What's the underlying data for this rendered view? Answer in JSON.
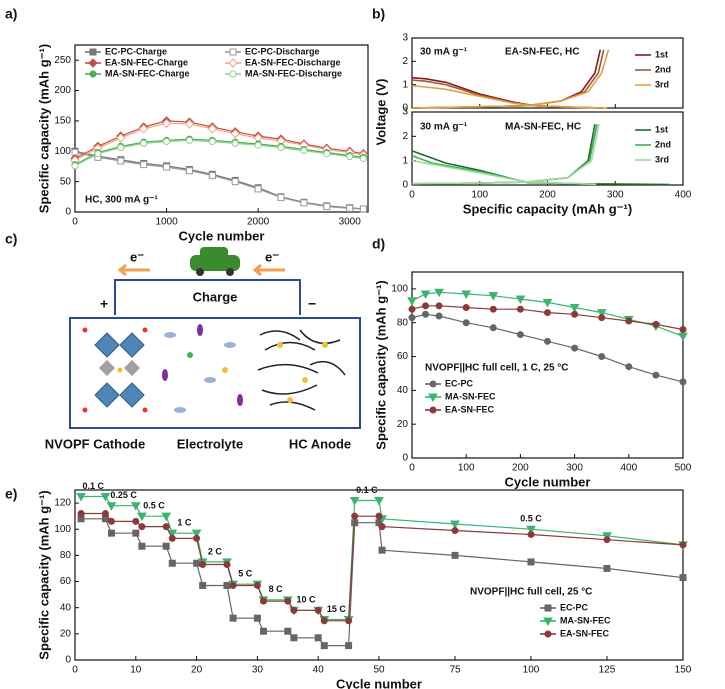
{
  "chart_data": [
    {
      "type": "line",
      "panel_label": "a)",
      "xlabel": "Cycle number",
      "ylabel": "Specific capacity (mAh g⁻¹)",
      "annotations": [
        "HC, 300 mA g⁻¹"
      ],
      "legend": "upper",
      "x": [
        0,
        250,
        500,
        750,
        1000,
        1250,
        1500,
        1750,
        2000,
        2250,
        2500,
        2750,
        3000,
        3150
      ],
      "xlim": [
        0,
        3200
      ],
      "xticks": [
        0,
        1000,
        2000,
        3000
      ],
      "ylim": [
        0,
        275
      ],
      "yticks": [
        0,
        50,
        100,
        150,
        200,
        250
      ],
      "series": [
        {
          "name": "EC-PC-Charge",
          "color": "#777777",
          "marker": "square",
          "hollow": false,
          "values": [
            100,
            92,
            86,
            80,
            76,
            70,
            62,
            52,
            40,
            25,
            16,
            10,
            7,
            5
          ]
        },
        {
          "name": "EC-PC-Discharge",
          "color": "#999999",
          "marker": "square",
          "hollow": true,
          "values": [
            98,
            90,
            84,
            78,
            74,
            68,
            60,
            50,
            38,
            24,
            15,
            9,
            6,
            5
          ]
        },
        {
          "name": "EA-SN-FEC-Charge",
          "color": "#c0504d",
          "marker": "diamond",
          "hollow": false,
          "values": [
            88,
            108,
            125,
            140,
            150,
            148,
            140,
            132,
            125,
            120,
            112,
            105,
            100,
            96
          ]
        },
        {
          "name": "EA-SN-FEC-Discharge",
          "color": "#f4a582",
          "marker": "diamond",
          "hollow": true,
          "values": [
            85,
            105,
            122,
            137,
            146,
            145,
            137,
            129,
            122,
            117,
            110,
            103,
            98,
            94
          ]
        },
        {
          "name": "MA-SN-FEC-Charge",
          "color": "#4caf50",
          "marker": "circle",
          "hollow": false,
          "values": [
            78,
            98,
            108,
            115,
            118,
            120,
            118,
            115,
            112,
            108,
            103,
            98,
            93,
            90
          ]
        },
        {
          "name": "MA-SN-FEC-Discharge",
          "color": "#8fd18f",
          "marker": "circle",
          "hollow": true,
          "values": [
            76,
            96,
            106,
            113,
            116,
            118,
            116,
            113,
            110,
            106,
            101,
            96,
            91,
            88
          ]
        }
      ]
    },
    {
      "type": "line",
      "panel_label": "b)",
      "annotations": [
        "30 mA g⁻¹",
        "EA-SN-FEC, HC"
      ],
      "legend": "right",
      "show_xtick_labels": false,
      "xlim": [
        0,
        400
      ],
      "xticks": [
        0,
        100,
        200,
        300,
        400
      ],
      "ylim": [
        0,
        3
      ],
      "yticks": [
        0,
        1,
        2,
        3
      ],
      "series": [
        {
          "name": "1st",
          "color": "#8b1a1a",
          "x": [
            0,
            20,
            50,
            100,
            150,
            180,
            230,
            280,
            null,
            0,
            100,
            170,
            220,
            250,
            270,
            278
          ],
          "values": [
            1.3,
            1.25,
            1.1,
            0.6,
            0.25,
            0.1,
            0.04,
            0,
            null,
            0,
            0.05,
            0.1,
            0.3,
            0.7,
            1.5,
            2.5
          ]
        },
        {
          "name": "2nd",
          "color": "#9c5a3c",
          "x": [
            0,
            20,
            50,
            100,
            150,
            180,
            230,
            283,
            null,
            0,
            100,
            170,
            220,
            255,
            275,
            283
          ],
          "values": [
            1.2,
            1.15,
            1.0,
            0.55,
            0.22,
            0.1,
            0.04,
            0,
            null,
            0,
            0.05,
            0.1,
            0.3,
            0.7,
            1.5,
            2.5
          ]
        },
        {
          "name": "3rd",
          "color": "#e0a040",
          "x": [
            0,
            20,
            50,
            100,
            150,
            180,
            230,
            288,
            null,
            0,
            100,
            170,
            220,
            260,
            280,
            290
          ],
          "values": [
            0.95,
            0.9,
            0.8,
            0.5,
            0.2,
            0.1,
            0.04,
            0,
            null,
            0,
            0.05,
            0.1,
            0.3,
            0.7,
            1.5,
            2.5
          ]
        }
      ]
    },
    {
      "type": "line",
      "xlabel": "Specific capacity (mAh g⁻¹)",
      "ylabel": "Voltage (V)",
      "annotations": [
        "30 mA g⁻¹",
        "MA-SN-FEC, HC"
      ],
      "legend": "right",
      "xlim": [
        0,
        400
      ],
      "xticks": [
        0,
        100,
        200,
        300,
        400
      ],
      "ylim": [
        0,
        3
      ],
      "yticks": [
        0,
        1,
        2,
        3
      ],
      "series": [
        {
          "name": "1st",
          "color": "#1a6b30",
          "x": [
            0,
            20,
            50,
            100,
            170,
            250,
            380,
            null,
            0,
            100,
            170,
            230,
            260,
            270
          ],
          "values": [
            1.4,
            1.2,
            0.9,
            0.6,
            0.1,
            0.05,
            0.02,
            null,
            0.05,
            0.08,
            0.12,
            0.3,
            1.0,
            2.5
          ]
        },
        {
          "name": "2nd",
          "color": "#3cb04a",
          "x": [
            0,
            30,
            60,
            100,
            170,
            270,
            null,
            0,
            100,
            170,
            230,
            262,
            273
          ],
          "values": [
            1.2,
            0.9,
            0.75,
            0.55,
            0.12,
            0.03,
            null,
            0.05,
            0.08,
            0.12,
            0.3,
            1.0,
            2.5
          ]
        },
        {
          "name": "3rd",
          "color": "#a0d8a0",
          "x": [
            0,
            30,
            60,
            100,
            170,
            272,
            null,
            0,
            100,
            170,
            230,
            265,
            276
          ],
          "values": [
            1.0,
            0.85,
            0.7,
            0.5,
            0.12,
            0.03,
            null,
            0.05,
            0.08,
            0.12,
            0.3,
            1.0,
            2.5
          ]
        }
      ]
    },
    {
      "type": "line",
      "panel_label": "d)",
      "xlabel": "Cycle number",
      "ylabel": "Specific capacity (mAh g⁻¹)",
      "annotations": [
        "NVOPF||HC full cell, 1 C, 25 °C"
      ],
      "legend": "lower left",
      "x": [
        0,
        25,
        50,
        100,
        150,
        200,
        250,
        300,
        350,
        400,
        450,
        500
      ],
      "xlim": [
        0,
        500
      ],
      "xticks": [
        0,
        100,
        200,
        300,
        400,
        500
      ],
      "ylim": [
        0,
        110
      ],
      "yticks": [
        0,
        20,
        40,
        60,
        80,
        100
      ],
      "series": [
        {
          "name": "EC-PC",
          "color": "#666666",
          "marker": "circle",
          "hollow": false,
          "values": [
            83,
            85,
            84,
            80,
            77,
            73,
            69,
            65,
            60,
            54,
            49,
            45
          ]
        },
        {
          "name": "MA-SN-FEC",
          "color": "#3cb371",
          "marker": "triangle",
          "hollow": false,
          "values": [
            93,
            97,
            98,
            97,
            96,
            94,
            92,
            89,
            86,
            82,
            78,
            72
          ]
        },
        {
          "name": "EA-SN-FEC",
          "color": "#8b3a3a",
          "marker": "circle",
          "hollow": false,
          "values": [
            88,
            90,
            90,
            89,
            88,
            88,
            86,
            85,
            83,
            81,
            79,
            76
          ]
        }
      ]
    },
    {
      "type": "line",
      "panel_label": "e)",
      "xlabel": "Cycle number",
      "ylabel": "Specific capacity (mAh g⁻¹)",
      "annotations": [
        "NVOPF||HC full cell, 25 °C"
      ],
      "legend": "lower right",
      "x": [
        1,
        5,
        6,
        10,
        11,
        15,
        16,
        20,
        21,
        25,
        26,
        30,
        31,
        35,
        36,
        40,
        41,
        45,
        46,
        50,
        51,
        75,
        100,
        125,
        150
      ],
      "xlim": [
        0,
        150
      ],
      "xsegments": [
        [
          0,
          50
        ],
        [
          50,
          150
        ]
      ],
      "xticks": [
        0,
        10,
        20,
        30,
        40,
        50,
        75,
        100,
        125,
        150
      ],
      "ylim": [
        0,
        130
      ],
      "yticks": [
        0,
        20,
        40,
        60,
        80,
        100,
        120
      ],
      "rate_labels": [
        "0.1 C",
        "0.25 C",
        "0.5 C",
        "1 C",
        "2 C",
        "5 C",
        "8 C",
        "10 C",
        "15 C",
        "0.1 C",
        "0.5 C"
      ],
      "series": [
        {
          "name": "EC-PC",
          "color": "#666666",
          "marker": "square",
          "hollow": false,
          "values": [
            108,
            108,
            97,
            97,
            87,
            87,
            74,
            74,
            57,
            57,
            32,
            32,
            22,
            22,
            17,
            17,
            11,
            11,
            105,
            105,
            84,
            80,
            75,
            70,
            63
          ]
        },
        {
          "name": "MA-SN-FEC",
          "color": "#3cb371",
          "marker": "triangle",
          "hollow": false,
          "values": [
            125,
            125,
            118,
            118,
            110,
            110,
            97,
            97,
            75,
            75,
            58,
            58,
            46,
            46,
            38,
            38,
            31,
            31,
            122,
            122,
            108,
            104,
            100,
            95,
            88
          ]
        },
        {
          "name": "EA-SN-FEC",
          "color": "#8b3a3a",
          "marker": "circle",
          "hollow": false,
          "values": [
            112,
            112,
            106,
            106,
            102,
            102,
            93,
            93,
            73,
            73,
            57,
            57,
            45,
            45,
            38,
            38,
            30,
            30,
            110,
            110,
            102,
            99,
            96,
            92,
            88
          ]
        }
      ]
    }
  ],
  "diagram": {
    "panel_label": "c)",
    "electrons": [
      "e⁻",
      "e⁻"
    ],
    "charge": "Charge",
    "plus": "+",
    "minus": "−",
    "labels": [
      "NVOPF Cathode",
      "Electrolyte",
      "HC Anode"
    ]
  }
}
